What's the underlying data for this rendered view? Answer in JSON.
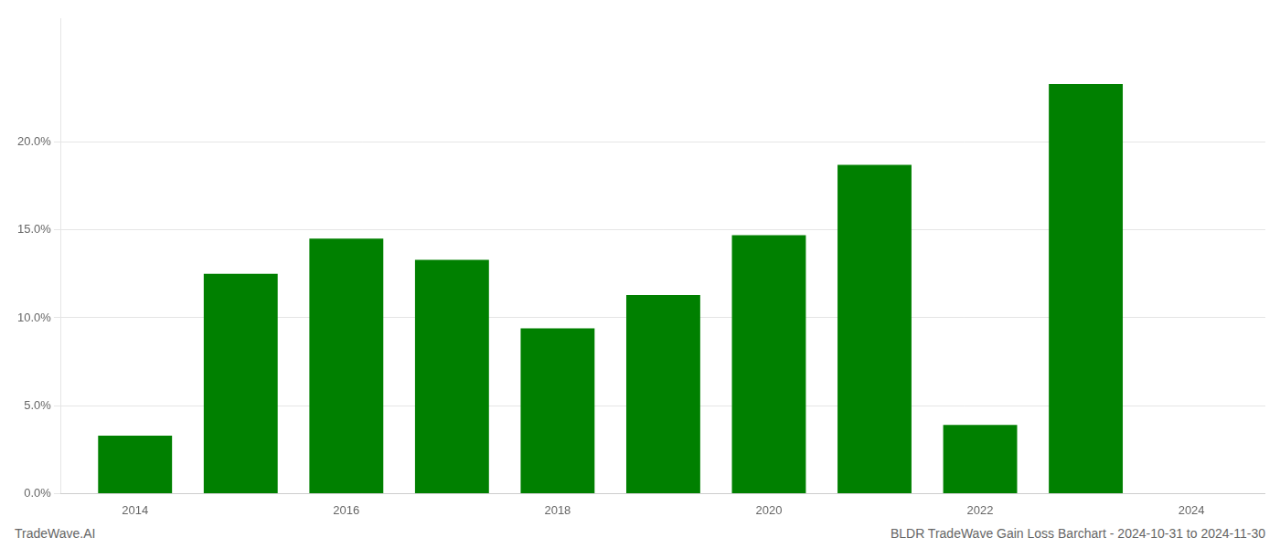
{
  "chart_data": {
    "type": "bar",
    "x": [
      2014,
      2015,
      2016,
      2017,
      2018,
      2019,
      2020,
      2021,
      2022,
      2023
    ],
    "values": [
      0.033,
      0.125,
      0.145,
      0.133,
      0.094,
      0.113,
      0.147,
      0.187,
      0.039,
      0.233
    ],
    "color": "#008000",
    "xlim": [
      2013.3,
      2024.7
    ],
    "xticks": [
      2014,
      2016,
      2018,
      2020,
      2022,
      2024
    ],
    "ylim": [
      0,
      0.27
    ],
    "yticks": [
      {
        "value": 0.0,
        "label": "0.0%"
      },
      {
        "value": 0.05,
        "label": "5.0%"
      },
      {
        "value": 0.1,
        "label": "10.0%"
      },
      {
        "value": 0.15,
        "label": "15.0%"
      },
      {
        "value": 0.2,
        "label": "20.0%"
      }
    ],
    "grid": true,
    "annotations": [
      "TradeWave.AI",
      "BLDR TradeWave Gain Loss Barchart - 2024-10-31 to 2024-11-30"
    ]
  }
}
